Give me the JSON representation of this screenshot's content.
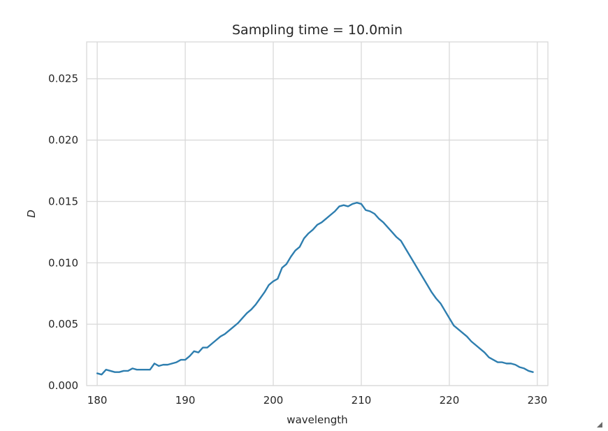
{
  "chart_data": {
    "type": "line",
    "title": "Sampling time = 10.0min",
    "xlabel": "wavelength",
    "ylabel": "D",
    "xlim": [
      178.8,
      231.2
    ],
    "ylim": [
      0.0,
      0.028
    ],
    "xticks": [
      180,
      190,
      200,
      210,
      220,
      230
    ],
    "xtick_labels": [
      "180",
      "190",
      "200",
      "210",
      "220",
      "230"
    ],
    "yticks": [
      0.0,
      0.005,
      0.01,
      0.015,
      0.02,
      0.025
    ],
    "ytick_labels": [
      "0.000",
      "0.005",
      "0.010",
      "0.015",
      "0.020",
      "0.025"
    ],
    "grid": true,
    "line_color": "#2e7eaf",
    "series": [
      {
        "x": [
          180,
          180.5,
          181,
          181.5,
          182,
          182.5,
          183,
          183.5,
          184,
          184.5,
          185,
          185.5,
          186,
          186.5,
          187,
          187.5,
          188,
          188.5,
          189,
          189.5,
          190,
          190.5,
          191,
          191.5,
          192,
          192.5,
          193,
          193.5,
          194,
          194.5,
          195,
          195.5,
          196,
          196.5,
          197,
          197.5,
          198,
          198.5,
          199,
          199.5,
          200,
          200.5,
          201,
          201.5,
          202,
          202.5,
          203,
          203.5,
          204,
          204.5,
          205,
          205.5,
          206,
          206.5,
          207,
          207.5,
          208,
          208.5,
          209,
          209.5,
          210,
          210.5,
          211,
          211.5,
          212,
          212.5,
          213,
          213.5,
          214,
          214.5,
          215,
          215.5,
          216,
          216.5,
          217,
          217.5,
          218,
          218.5,
          219,
          219.5,
          220,
          220.5,
          221,
          221.5,
          222,
          222.5,
          223,
          223.5,
          224,
          224.5,
          225,
          225.5,
          226,
          226.5,
          227,
          227.5,
          228,
          228.5,
          229,
          229.5
        ],
        "y": [
          0.001,
          0.0009,
          0.0013,
          0.0012,
          0.0011,
          0.0011,
          0.0012,
          0.0012,
          0.0014,
          0.0013,
          0.0013,
          0.0013,
          0.0013,
          0.0018,
          0.0016,
          0.0017,
          0.0017,
          0.0018,
          0.0019,
          0.0021,
          0.0021,
          0.0024,
          0.0028,
          0.0027,
          0.0031,
          0.0031,
          0.0034,
          0.0037,
          0.004,
          0.0042,
          0.0045,
          0.0048,
          0.0051,
          0.0055,
          0.0059,
          0.0062,
          0.0066,
          0.0071,
          0.0076,
          0.0082,
          0.0085,
          0.0087,
          0.0096,
          0.0099,
          0.0105,
          0.011,
          0.0113,
          0.012,
          0.0124,
          0.0127,
          0.0131,
          0.0133,
          0.0136,
          0.0139,
          0.0142,
          0.0146,
          0.0147,
          0.0146,
          0.0148,
          0.0149,
          0.0148,
          0.0143,
          0.0142,
          0.014,
          0.0136,
          0.0133,
          0.0129,
          0.0125,
          0.0121,
          0.0118,
          0.0112,
          0.0106,
          0.01,
          0.0094,
          0.0088,
          0.0082,
          0.0076,
          0.0071,
          0.0067,
          0.0061,
          0.0055,
          0.0049,
          0.0046,
          0.0043,
          0.004,
          0.0036,
          0.0033,
          0.003,
          0.0027,
          0.0023,
          0.0021,
          0.0019,
          0.0019,
          0.0018,
          0.0018,
          0.0017,
          0.0015,
          0.0014,
          0.0012,
          0.0011
        ]
      }
    ]
  },
  "resize_grip_icon": "resize-grip-icon"
}
